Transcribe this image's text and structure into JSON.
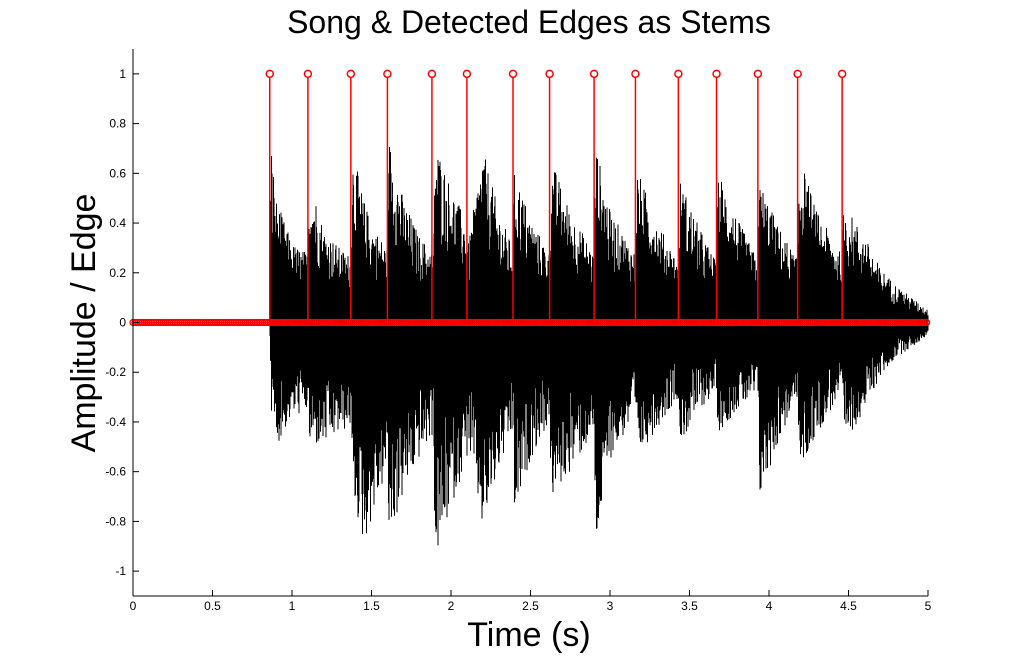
{
  "chart_data": {
    "type": "line",
    "title": "Song & Detected Edges as Stems",
    "xlabel": "Time (s)",
    "ylabel": "Amplitude / Edge",
    "xlim": [
      0,
      5
    ],
    "ylim": [
      -1.1,
      1.1
    ],
    "x_ticks": [
      0,
      0.5,
      1,
      1.5,
      2,
      2.5,
      3,
      3.5,
      4,
      4.5,
      5
    ],
    "x_tick_labels": [
      "0",
      "0.5",
      "1",
      "1.5",
      "2",
      "2.5",
      "3",
      "3.5",
      "4",
      "4.5",
      "5"
    ],
    "y_ticks": [
      -1,
      -0.8,
      -0.6,
      -0.4,
      -0.2,
      0,
      0.2,
      0.4,
      0.6,
      0.8,
      1
    ],
    "y_tick_labels": [
      "-1",
      "-0.8",
      "-0.6",
      "-0.4",
      "-0.2",
      "0",
      "0.2",
      "0.4",
      "0.6",
      "0.8",
      "1"
    ],
    "grid": false,
    "legend": false,
    "colors": {
      "waveform": "#000000",
      "stems": "#ff0000",
      "axes": "#000000"
    },
    "series": [
      {
        "kind": "waveform-envelope",
        "color": "#000000",
        "x": [
          0,
          0.86,
          0.87,
          0.9,
          1.0,
          1.1,
          1.11,
          1.2,
          1.3,
          1.37,
          1.38,
          1.45,
          1.5,
          1.6,
          1.61,
          1.7,
          1.8,
          1.89,
          1.9,
          2.0,
          2.1,
          2.11,
          2.2,
          2.3,
          2.39,
          2.4,
          2.5,
          2.62,
          2.63,
          2.75,
          2.9,
          2.91,
          3.0,
          3.16,
          3.17,
          3.3,
          3.43,
          3.44,
          3.55,
          3.67,
          3.68,
          3.8,
          3.93,
          3.94,
          4.05,
          4.18,
          4.19,
          4.3,
          4.46,
          4.47,
          4.6,
          4.7,
          4.8,
          4.9,
          5.0
        ],
        "max": [
          0,
          0,
          0.72,
          0.5,
          0.32,
          0.28,
          0.6,
          0.38,
          0.3,
          0.27,
          0.7,
          0.5,
          0.4,
          0.3,
          0.75,
          0.5,
          0.35,
          0.28,
          0.74,
          0.55,
          0.4,
          0.32,
          0.7,
          0.45,
          0.3,
          0.62,
          0.42,
          0.28,
          0.66,
          0.45,
          0.28,
          0.72,
          0.45,
          0.28,
          0.62,
          0.4,
          0.25,
          0.58,
          0.4,
          0.24,
          0.62,
          0.42,
          0.25,
          0.58,
          0.4,
          0.25,
          0.68,
          0.45,
          0.27,
          0.48,
          0.35,
          0.22,
          0.15,
          0.1,
          0.05
        ],
        "min": [
          0,
          0,
          -0.35,
          -0.5,
          -0.38,
          -0.36,
          -0.5,
          -0.5,
          -0.45,
          -0.42,
          -0.7,
          -0.9,
          -0.8,
          -0.6,
          -0.88,
          -0.7,
          -0.55,
          -0.45,
          -0.98,
          -0.75,
          -0.55,
          -0.5,
          -0.85,
          -0.6,
          -0.45,
          -0.8,
          -0.55,
          -0.4,
          -0.72,
          -0.6,
          -0.45,
          -0.92,
          -0.55,
          -0.38,
          -0.55,
          -0.42,
          -0.3,
          -0.5,
          -0.36,
          -0.28,
          -0.45,
          -0.35,
          -0.3,
          -0.72,
          -0.5,
          -0.3,
          -0.62,
          -0.45,
          -0.28,
          -0.5,
          -0.35,
          -0.22,
          -0.14,
          -0.1,
          -0.05
        ]
      },
      {
        "kind": "stem",
        "color": "#ff0000",
        "x": [
          0.86,
          1.1,
          1.37,
          1.6,
          1.88,
          2.1,
          2.39,
          2.62,
          2.9,
          3.16,
          3.43,
          3.67,
          3.93,
          4.18,
          4.46
        ],
        "y": [
          1,
          1,
          1,
          1,
          1,
          1,
          1,
          1,
          1,
          1,
          1,
          1,
          1,
          1,
          1
        ]
      }
    ]
  }
}
